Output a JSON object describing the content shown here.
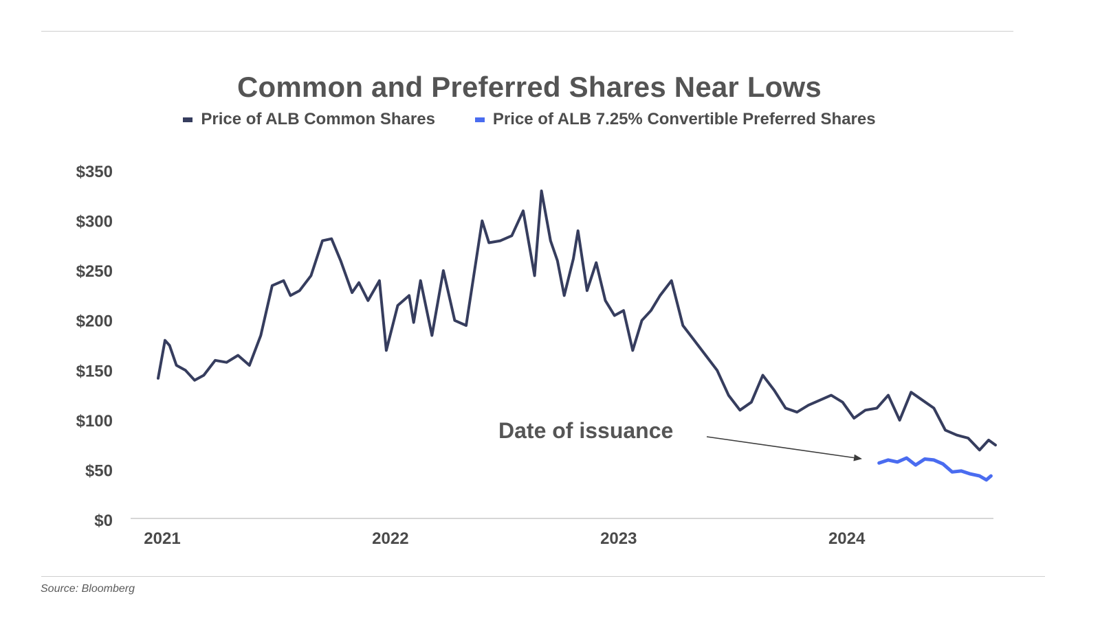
{
  "chart_data": {
    "type": "line",
    "title": "Common and Preferred Shares Near Lows",
    "xlabel": "",
    "ylabel": "",
    "x_ticks": [
      "2021",
      "2022",
      "2023",
      "2024"
    ],
    "y_ticks": [
      "$0",
      "$50",
      "$100",
      "$150",
      "$200",
      "$250",
      "$300",
      "$350"
    ],
    "ylim": [
      0,
      350
    ],
    "xlim": [
      2021.0,
      2024.67
    ],
    "grid": false,
    "legend_position": "top",
    "annotation": "Date of issuance",
    "series": [
      {
        "name": "Price of ALB Common Shares",
        "color": "#363d5e",
        "x": [
          2021.0,
          2021.03,
          2021.05,
          2021.08,
          2021.12,
          2021.16,
          2021.2,
          2021.25,
          2021.3,
          2021.35,
          2021.4,
          2021.45,
          2021.5,
          2021.55,
          2021.58,
          2021.62,
          2021.67,
          2021.72,
          2021.76,
          2021.8,
          2021.85,
          2021.88,
          2021.92,
          2021.97,
          2022.0,
          2022.05,
          2022.1,
          2022.12,
          2022.15,
          2022.2,
          2022.25,
          2022.3,
          2022.35,
          2022.38,
          2022.42,
          2022.45,
          2022.5,
          2022.55,
          2022.6,
          2022.65,
          2022.68,
          2022.72,
          2022.75,
          2022.78,
          2022.82,
          2022.84,
          2022.88,
          2022.92,
          2022.96,
          2023.0,
          2023.04,
          2023.08,
          2023.12,
          2023.16,
          2023.2,
          2023.25,
          2023.3,
          2023.35,
          2023.4,
          2023.45,
          2023.5,
          2023.55,
          2023.6,
          2023.65,
          2023.7,
          2023.75,
          2023.8,
          2023.85,
          2023.9,
          2023.95,
          2024.0,
          2024.05,
          2024.1,
          2024.15,
          2024.2,
          2024.25,
          2024.3,
          2024.35,
          2024.4,
          2024.45,
          2024.5,
          2024.55,
          2024.6,
          2024.64,
          2024.67
        ],
        "values": [
          142,
          180,
          175,
          155,
          150,
          140,
          145,
          160,
          158,
          165,
          155,
          185,
          235,
          240,
          225,
          230,
          245,
          280,
          282,
          260,
          228,
          238,
          220,
          240,
          170,
          215,
          225,
          198,
          240,
          185,
          250,
          200,
          195,
          240,
          300,
          278,
          280,
          285,
          310,
          245,
          330,
          280,
          260,
          225,
          262,
          290,
          230,
          258,
          220,
          205,
          210,
          170,
          200,
          210,
          225,
          240,
          195,
          180,
          165,
          150,
          125,
          110,
          118,
          145,
          130,
          112,
          108,
          115,
          120,
          125,
          118,
          102,
          110,
          112,
          125,
          100,
          128,
          120,
          112,
          90,
          85,
          82,
          70,
          80,
          75
        ]
      },
      {
        "name": "Price of ALB 7.25% Convertible Preferred  Shares",
        "color": "#4a6cf0",
        "x": [
          2024.16,
          2024.2,
          2024.24,
          2024.28,
          2024.32,
          2024.36,
          2024.4,
          2024.44,
          2024.48,
          2024.52,
          2024.56,
          2024.6,
          2024.63,
          2024.65
        ],
        "values": [
          57,
          60,
          58,
          62,
          55,
          61,
          60,
          56,
          48,
          49,
          46,
          44,
          40,
          44
        ]
      }
    ]
  },
  "source": "Source: Bloomberg"
}
